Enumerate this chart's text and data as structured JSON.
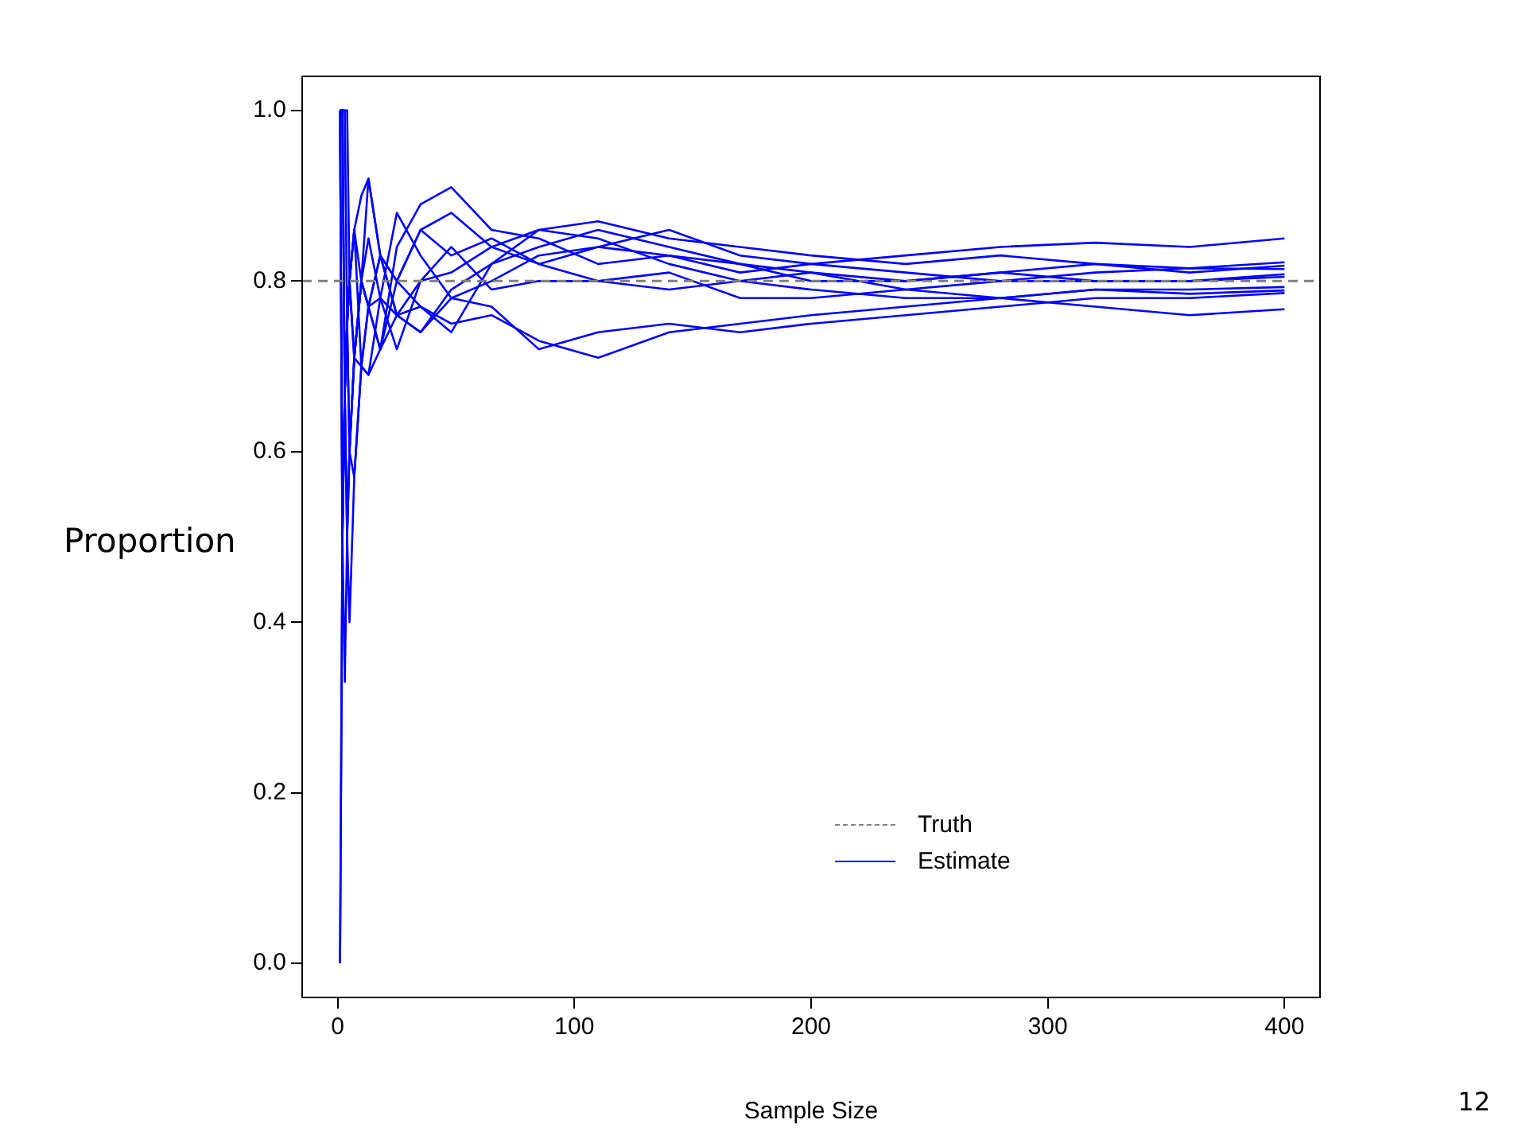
{
  "chart_data": {
    "type": "line",
    "xlabel": "Sample Size",
    "ylabel": "Proportion",
    "annotations": [
      "12"
    ],
    "x": [
      1,
      2,
      3,
      4,
      5,
      7,
      10,
      13,
      18,
      25,
      35,
      48,
      65,
      85,
      110,
      140,
      170,
      200,
      240,
      280,
      320,
      360,
      400
    ],
    "xlim": [
      -15,
      415
    ],
    "xticks": [
      0,
      100,
      200,
      300,
      400
    ],
    "ylim": [
      -0.04,
      1.04
    ],
    "yticks": [
      {
        "value": 0,
        "label": "0.0"
      },
      0.2,
      0.4,
      0.6,
      0.8,
      {
        "value": 1,
        "label": "1.0"
      }
    ],
    "grid": false,
    "legend": "bottom right",
    "marker": "none",
    "line_style": "solid",
    "ref_lines": [
      {
        "axis": "y",
        "value": 0.8,
        "label": "Truth",
        "color": "#808080",
        "line_style": "dashed"
      }
    ],
    "series": [
      {
        "name": "Estimate",
        "color": "#0000ff",
        "values": [
          1,
          1,
          1,
          0.75,
          0.8,
          0.86,
          0.9,
          0.92,
          0.83,
          0.8,
          0.86,
          0.83,
          0.85,
          0.82,
          0.84,
          0.83,
          0.81,
          0.82,
          0.83,
          0.84,
          0.845,
          0.84,
          0.85
        ]
      },
      {
        "color": "#0000ff",
        "values": [
          0,
          0.5,
          0.67,
          0.75,
          0.8,
          0.71,
          0.8,
          0.92,
          0.83,
          0.76,
          0.8,
          0.81,
          0.84,
          0.86,
          0.87,
          0.85,
          0.84,
          0.83,
          0.82,
          0.83,
          0.82,
          0.815,
          0.822
        ]
      },
      {
        "color": "#0000ff",
        "values": [
          1,
          1,
          0.67,
          0.75,
          0.6,
          0.71,
          0.8,
          0.77,
          0.72,
          0.84,
          0.89,
          0.91,
          0.86,
          0.85,
          0.82,
          0.83,
          0.82,
          0.81,
          0.8,
          0.81,
          0.82,
          0.81,
          0.818
        ]
      },
      {
        "color": "#0000ff",
        "values": [
          1,
          0.5,
          0.33,
          0.5,
          0.6,
          0.71,
          0.7,
          0.69,
          0.78,
          0.88,
          0.83,
          0.78,
          0.8,
          0.83,
          0.84,
          0.86,
          0.83,
          0.82,
          0.81,
          0.8,
          0.81,
          0.815,
          0.814
        ]
      },
      {
        "color": "#0000ff",
        "values": [
          1,
          1,
          1,
          1,
          0.8,
          0.86,
          0.7,
          0.77,
          0.83,
          0.76,
          0.74,
          0.79,
          0.82,
          0.84,
          0.86,
          0.84,
          0.82,
          0.8,
          0.8,
          0.81,
          0.8,
          0.8,
          0.808
        ]
      },
      {
        "color": "#0000ff",
        "values": [
          0,
          0.5,
          0.67,
          0.5,
          0.6,
          0.57,
          0.7,
          0.77,
          0.72,
          0.8,
          0.86,
          0.88,
          0.84,
          0.82,
          0.8,
          0.79,
          0.8,
          0.81,
          0.79,
          0.8,
          0.8,
          0.8,
          0.805
        ]
      },
      {
        "color": "#0000ff",
        "values": [
          1,
          0.5,
          0.67,
          0.75,
          0.8,
          0.86,
          0.8,
          0.77,
          0.83,
          0.8,
          0.77,
          0.74,
          0.82,
          0.86,
          0.85,
          0.82,
          0.8,
          0.79,
          0.78,
          0.78,
          0.79,
          0.79,
          0.793
        ]
      },
      {
        "color": "#0000ff",
        "values": [
          1,
          1,
          0.67,
          0.75,
          0.6,
          0.71,
          0.8,
          0.85,
          0.78,
          0.72,
          0.8,
          0.84,
          0.79,
          0.8,
          0.8,
          0.81,
          0.78,
          0.78,
          0.79,
          0.78,
          0.79,
          0.785,
          0.789
        ]
      },
      {
        "color": "#0000ff",
        "values": [
          1,
          1,
          0.67,
          0.75,
          0.8,
          0.71,
          0.8,
          0.77,
          0.78,
          0.76,
          0.74,
          0.78,
          0.77,
          0.72,
          0.74,
          0.75,
          0.74,
          0.75,
          0.76,
          0.77,
          0.78,
          0.78,
          0.786
        ]
      },
      {
        "color": "#0000ff",
        "values": [
          1,
          0.5,
          0.67,
          0.5,
          0.4,
          0.57,
          0.7,
          0.69,
          0.72,
          0.76,
          0.77,
          0.75,
          0.76,
          0.73,
          0.71,
          0.74,
          0.75,
          0.76,
          0.77,
          0.78,
          0.77,
          0.76,
          0.767
        ]
      }
    ]
  }
}
